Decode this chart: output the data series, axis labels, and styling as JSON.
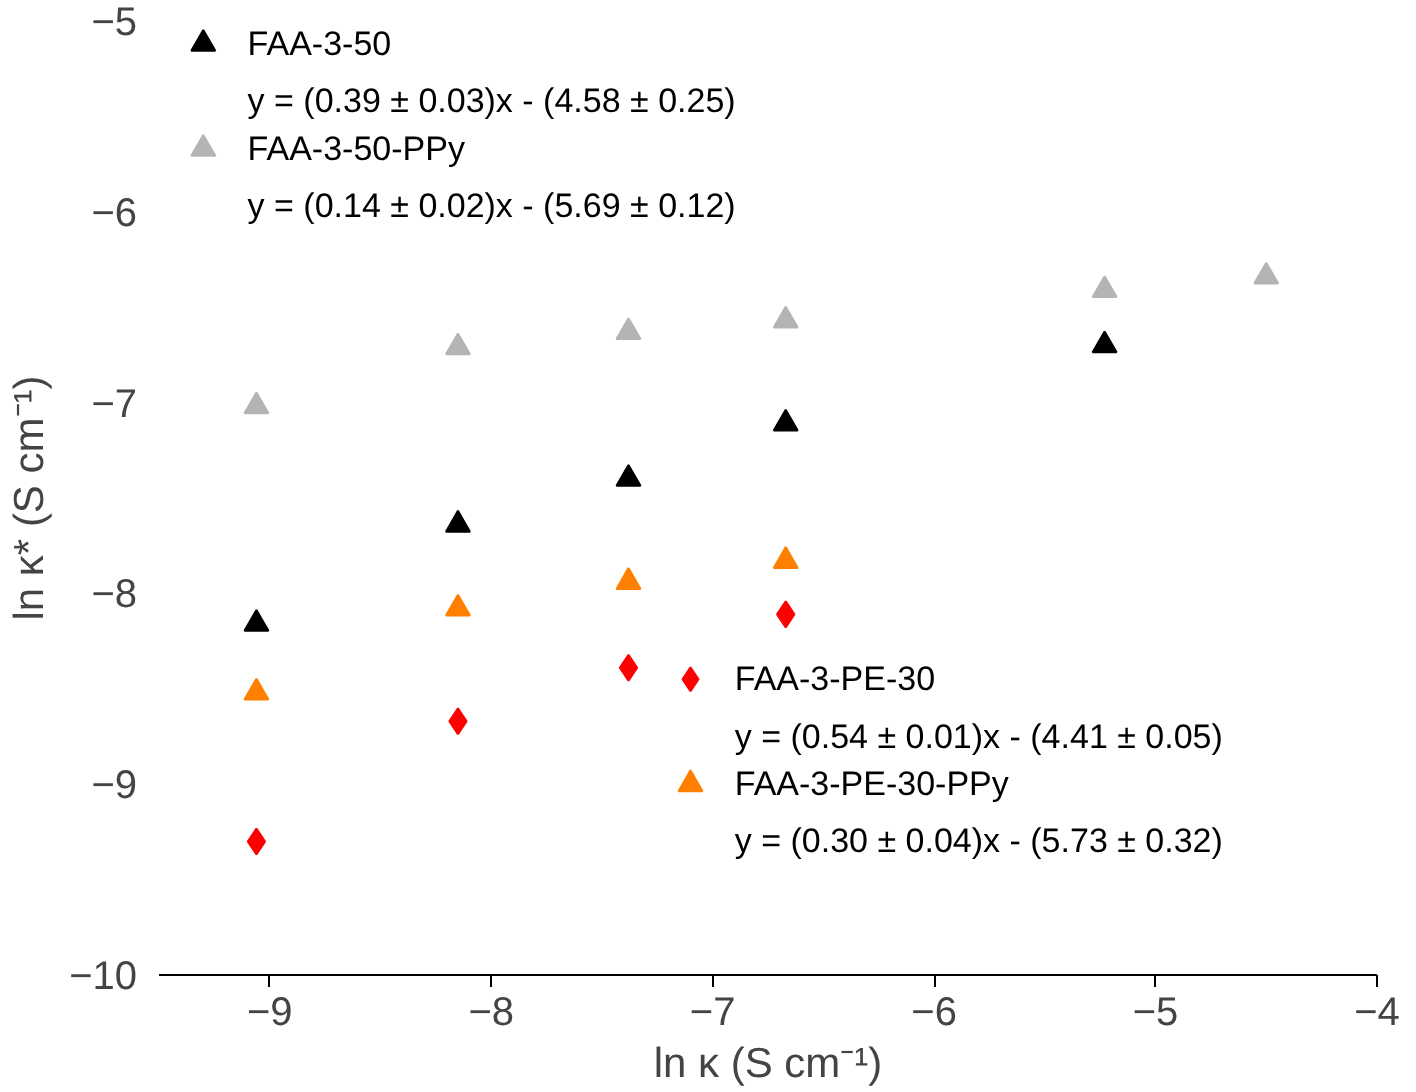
{
  "chart_data": {
    "type": "scatter",
    "xlabel": "ln κ (S cm⁻¹)",
    "ylabel": "ln κ* (S cm⁻¹)",
    "xlim": [
      -9.5,
      -4
    ],
    "ylim": [
      -10,
      -5
    ],
    "xticks": [
      -9,
      -8,
      -7,
      -6,
      -5,
      -4
    ],
    "yticks": [
      -10,
      -9,
      -8,
      -7,
      -6,
      -5
    ],
    "grid": false,
    "legend": "top left",
    "series": [
      {
        "name": "FAA-3-50",
        "color": "#000000",
        "marker": "triangle",
        "x": [
          -9.06,
          -8.15,
          -7.38,
          -6.67,
          -5.23
        ],
        "values": [
          -8.16,
          -7.64,
          -7.4,
          -7.11,
          -6.7
        ]
      },
      {
        "name": "FAA-3-50-PPy",
        "color": "#b4b4b4",
        "marker": "triangle",
        "x": [
          -9.06,
          -8.15,
          -7.38,
          -6.67,
          -5.23,
          -4.5
        ],
        "values": [
          -7.02,
          -6.71,
          -6.63,
          -6.57,
          -6.41,
          -6.34
        ]
      },
      {
        "name": "FAA-3-PE-30",
        "color": "#ff0000",
        "marker": "diamond",
        "x": [
          -9.06,
          -8.15,
          -7.38,
          -6.67
        ],
        "values": [
          -9.3,
          -8.67,
          -8.39,
          -8.11
        ]
      },
      {
        "name": "FAA-3-PE-30-PPy",
        "color": "#ff8000",
        "marker": "triangle",
        "x": [
          -9.06,
          -8.15,
          -7.38,
          -6.67
        ],
        "values": [
          -8.52,
          -8.08,
          -7.94,
          -7.83
        ]
      }
    ],
    "annotations": [
      "y = (0.39 ± 0.03)x - (4.58 ± 0.25)",
      "y = (0.14 ± 0.02)x - (5.69 ± 0.12)",
      "y = (0.54 ± 0.01)x - (4.41 ± 0.05)",
      "y = (0.30 ± 0.04)x - (5.73 ± 0.32)"
    ]
  }
}
